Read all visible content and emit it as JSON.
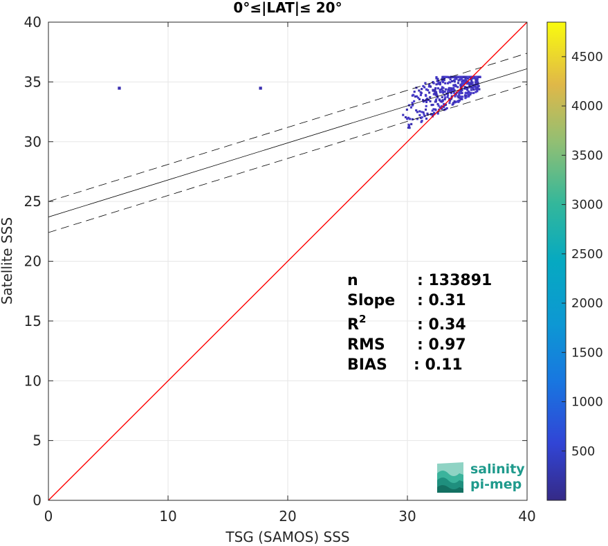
{
  "chart_data": {
    "type": "heatmap",
    "title": "0°≤|LAT|≤ 20°",
    "xlabel": "TSG (SAMOS) SSS",
    "ylabel": "Satellite SSS",
    "xlim": [
      0,
      40
    ],
    "ylim": [
      0,
      40
    ],
    "xticks": [
      "0",
      "10",
      "20",
      "30",
      "40"
    ],
    "yticks": [
      "0",
      "5",
      "10",
      "15",
      "20",
      "25",
      "30",
      "35",
      "40"
    ],
    "grid": true,
    "colorbar": {
      "range": [
        0,
        4850
      ],
      "ticks": [
        "500",
        "1000",
        "1500",
        "2000",
        "2500",
        "3000",
        "3500",
        "4000",
        "4500"
      ],
      "colormap": "parula"
    },
    "fit": {
      "slope": 0.31,
      "intercept": 23.7,
      "band": 1.3
    },
    "identity_line_color": "#ff0000",
    "stats": [
      {
        "label": "n",
        "value": ": 133891"
      },
      {
        "label": "Slope",
        "value": ": 0.31"
      },
      {
        "label": "R",
        "sup": "2",
        "value": ": 0.34"
      },
      {
        "label": "RMS",
        "value": ": 0.97"
      },
      {
        "label": "BIAS",
        "value": ": 0.11"
      }
    ],
    "density_cluster": {
      "x_range": [
        27,
        36
      ],
      "y_range": [
        30.5,
        35.5
      ],
      "count_level": "low"
    },
    "outliers": [
      {
        "x": 5.8,
        "y": 34.6
      },
      {
        "x": 17.6,
        "y": 34.6
      }
    ]
  },
  "logo": {
    "line1": "salinity",
    "line2": "pi-mep"
  }
}
